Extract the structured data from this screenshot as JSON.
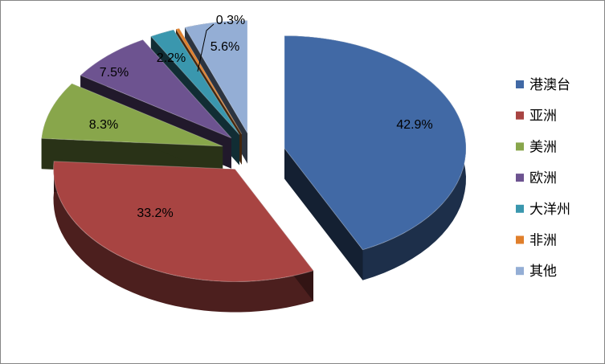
{
  "chart_data": {
    "type": "pie",
    "title": "",
    "categories": [
      "港澳台",
      "亚洲",
      "美洲",
      "欧洲",
      "大洋州",
      "非洲",
      "其他"
    ],
    "values": [
      42.9,
      33.2,
      8.3,
      7.5,
      2.2,
      0.3,
      5.6
    ],
    "value_labels": [
      "42.9%",
      "33.2%",
      "8.3%",
      "7.5%",
      "2.2%",
      "0.3%",
      "5.6%"
    ],
    "colors": [
      "#4169A5",
      "#A84442",
      "#88A64B",
      "#6D5390",
      "#3A97AE",
      "#E07F2B",
      "#94AED5"
    ],
    "style": "3d-exploded",
    "legend_position": "right"
  }
}
